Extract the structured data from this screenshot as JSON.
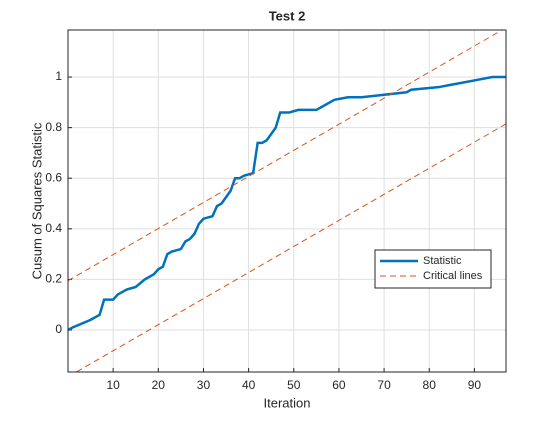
{
  "chart_data": {
    "type": "line",
    "title": "Test  2",
    "xlabel": "Iteration",
    "ylabel": "Cusum of Squares Statistic",
    "xlim": [
      0,
      97
    ],
    "ylim": [
      -0.166,
      1.186
    ],
    "xticks": [
      10,
      20,
      30,
      40,
      50,
      60,
      70,
      80,
      90
    ],
    "yticks": [
      0,
      0.2,
      0.4,
      0.6,
      0.8,
      1
    ],
    "grid": true,
    "legend": "east",
    "series": [
      {
        "name": "Statistic",
        "color": "#0072bd",
        "style": "solid",
        "x": [
          0,
          1,
          5,
          7,
          8,
          10,
          11,
          12,
          13,
          15,
          17,
          18,
          19,
          20,
          21,
          22,
          23,
          25,
          26,
          27,
          28,
          29,
          30,
          32,
          33,
          34,
          36,
          37,
          38,
          39,
          41,
          42,
          43,
          44,
          46,
          47,
          49,
          51,
          55,
          57,
          59,
          62,
          65,
          70,
          75,
          76,
          82,
          85,
          88,
          91,
          94,
          97
        ],
        "values": [
          0,
          0.01,
          0.04,
          0.06,
          0.12,
          0.12,
          0.14,
          0.15,
          0.16,
          0.17,
          0.2,
          0.21,
          0.22,
          0.24,
          0.25,
          0.3,
          0.31,
          0.32,
          0.35,
          0.36,
          0.38,
          0.42,
          0.44,
          0.45,
          0.49,
          0.5,
          0.55,
          0.6,
          0.6,
          0.61,
          0.62,
          0.74,
          0.74,
          0.75,
          0.8,
          0.86,
          0.86,
          0.87,
          0.87,
          0.89,
          0.91,
          0.92,
          0.92,
          0.93,
          0.94,
          0.95,
          0.96,
          0.97,
          0.98,
          0.99,
          1.0,
          1.0
        ]
      },
      {
        "name": "Critical lines",
        "color": "#d95319",
        "style": "dashed",
        "x": [
          0,
          97
        ],
        "values": [
          0.195,
          1.195
        ]
      },
      {
        "color": "#d95319",
        "style": "dashed",
        "x": [
          0,
          97
        ],
        "values": [
          -0.185,
          0.815
        ]
      }
    ]
  }
}
